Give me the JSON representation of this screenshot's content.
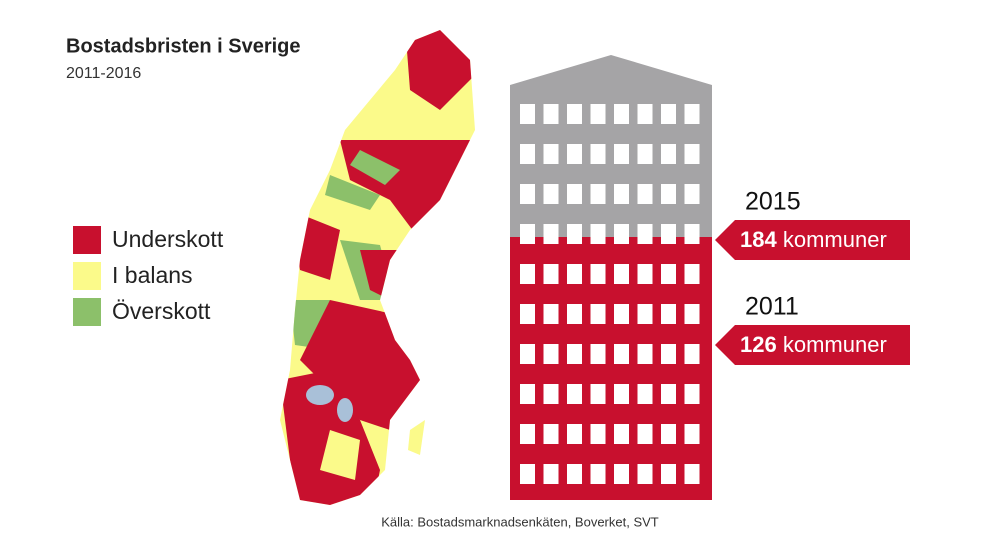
{
  "header": {
    "title": "Bostadsbristen i Sverige",
    "subtitle": "2011-2016"
  },
  "legend": {
    "items": [
      {
        "label": "Underskott",
        "color": "#c8102e"
      },
      {
        "label": "I balans",
        "color": "#fbfa8a"
      },
      {
        "label": "Överskott",
        "color": "#8cc06a"
      }
    ]
  },
  "callouts": [
    {
      "year": "2015",
      "value": 184,
      "unit": "kommuner"
    },
    {
      "year": "2011",
      "value": 126,
      "unit": "kommuner"
    }
  ],
  "source": "Källa: Bostadsmarknadsenkäten, Boverket, SVT"
}
